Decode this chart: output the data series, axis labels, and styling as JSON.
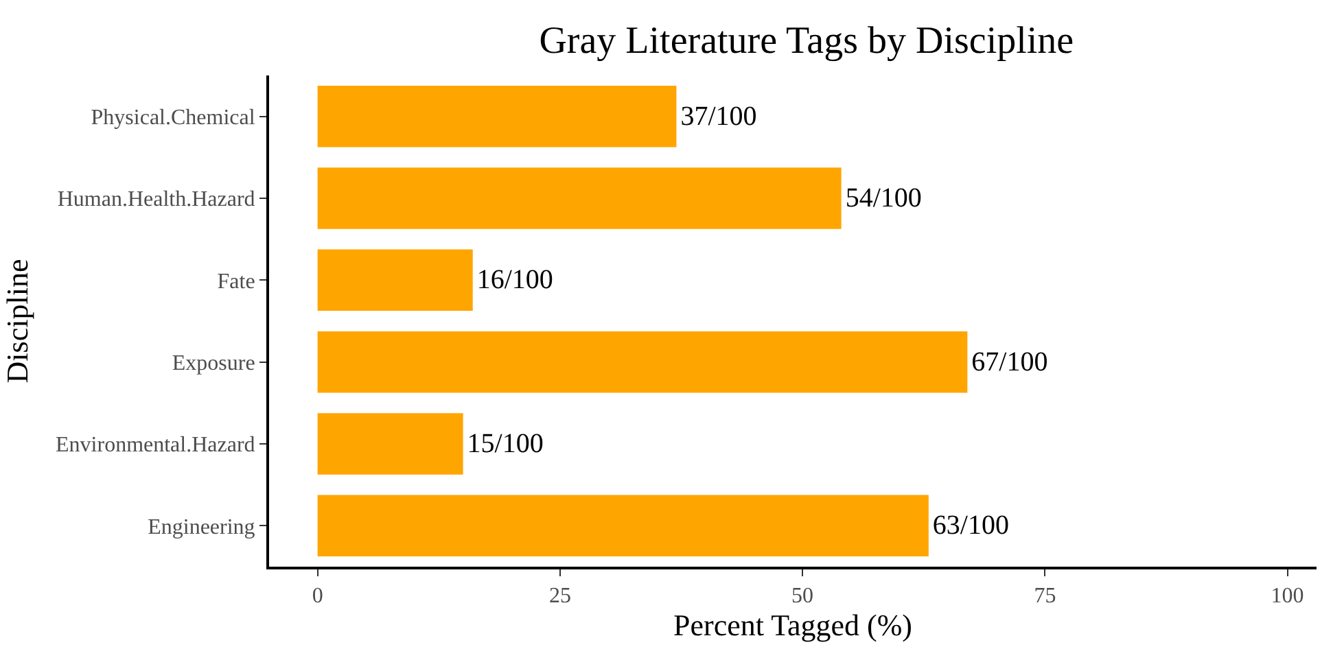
{
  "chart_data": {
    "type": "bar",
    "orientation": "horizontal",
    "title": "Gray Literature Tags by Discipline",
    "xlabel": "Percent Tagged (%)",
    "ylabel": "Discipline",
    "categories": [
      "Physical.Chemical",
      "Human.Health.Hazard",
      "Fate",
      "Exposure",
      "Environmental.Hazard",
      "Engineering"
    ],
    "values": [
      37,
      54,
      16,
      67,
      15,
      63
    ],
    "value_labels": [
      "37/100",
      "54/100",
      "16/100",
      "67/100",
      "15/100",
      "63/100"
    ],
    "color": "#ffa500",
    "xlim": [
      -5,
      103
    ],
    "xticks": [
      0,
      25,
      50,
      75,
      100
    ],
    "legend": false
  }
}
